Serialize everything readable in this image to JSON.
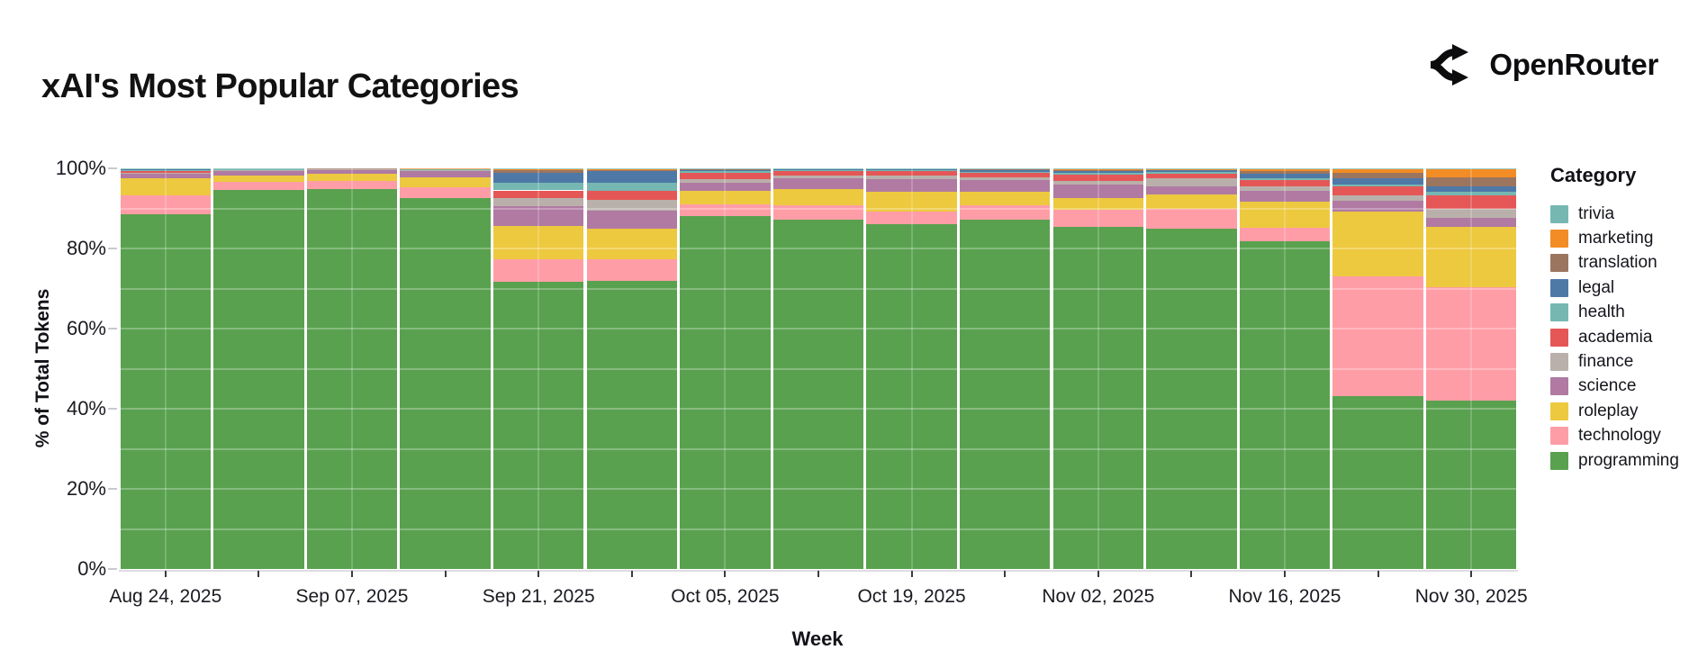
{
  "header": {
    "title": "xAI's Most Popular Categories",
    "brand": "OpenRouter"
  },
  "chart_data": {
    "type": "bar",
    "variant": "stacked-normalized-100pct",
    "title": "xAI's Most Popular Categories",
    "xlabel": "Week",
    "ylabel": "% of Total Tokens",
    "ylim": [
      0,
      100
    ],
    "grid": "white-overlay-every-10pct",
    "num_bars": 15,
    "yticks": [
      {
        "value": 0,
        "label": "0%"
      },
      {
        "value": 20,
        "label": "20%"
      },
      {
        "value": 40,
        "label": "40%"
      },
      {
        "value": 60,
        "label": "60%"
      },
      {
        "value": 80,
        "label": "80%"
      },
      {
        "value": 100,
        "label": "100%"
      }
    ],
    "x_ticks": [
      {
        "bar_index": 0,
        "label": "Aug 24, 2025"
      },
      {
        "bar_index": 2,
        "label": "Sep 07, 2025"
      },
      {
        "bar_index": 4,
        "label": "Sep 21, 2025"
      },
      {
        "bar_index": 6,
        "label": "Oct 05, 2025"
      },
      {
        "bar_index": 8,
        "label": "Oct 19, 2025"
      },
      {
        "bar_index": 10,
        "label": "Nov 02, 2025"
      },
      {
        "bar_index": 12,
        "label": "Nov 16, 2025"
      },
      {
        "bar_index": 14,
        "label": "Nov 30, 2025"
      }
    ],
    "legend": {
      "title": "Category",
      "position": "right",
      "items_top_to_bottom": [
        "trivia",
        "marketing",
        "translation",
        "legal",
        "health",
        "academia",
        "finance",
        "science",
        "roleplay",
        "technology",
        "programming"
      ]
    },
    "series_bottom_to_top": [
      {
        "name": "programming",
        "color": "#59a14f",
        "values": [
          88.6,
          94.6,
          94.9,
          92.6,
          71.6,
          71.9,
          88.2,
          87.1,
          86.0,
          87.1,
          85.3,
          84.9,
          81.9,
          43.2,
          42.0
        ]
      },
      {
        "name": "technology",
        "color": "#ff9da7",
        "values": [
          4.7,
          2.0,
          2.0,
          2.7,
          5.6,
          5.3,
          2.9,
          3.8,
          3.3,
          3.8,
          4.4,
          4.9,
          3.3,
          29.9,
          28.4
        ]
      },
      {
        "name": "roleplay",
        "color": "#edc93f",
        "values": [
          4.2,
          1.5,
          1.8,
          2.5,
          8.4,
          7.8,
          3.3,
          4.0,
          4.9,
          3.3,
          2.9,
          3.6,
          6.4,
          16.2,
          14.9
        ]
      },
      {
        "name": "science",
        "color": "#b07aa2",
        "values": [
          1.1,
          1.2,
          1.0,
          1.7,
          4.9,
          4.4,
          2.0,
          2.7,
          3.0,
          2.8,
          3.3,
          2.2,
          2.7,
          2.7,
          2.4
        ]
      },
      {
        "name": "finance",
        "color": "#bab0ab",
        "values": [
          0.3,
          0.15,
          0.05,
          0.1,
          2.2,
          2.7,
          0.8,
          0.7,
          1.1,
          0.7,
          0.9,
          2.0,
          1.1,
          1.3,
          2.2
        ]
      },
      {
        "name": "academia",
        "color": "#e45756",
        "values": [
          0.6,
          0.3,
          0.15,
          0.2,
          1.8,
          2.2,
          1.6,
          1.1,
          1.1,
          1.1,
          1.6,
          1.1,
          1.6,
          2.2,
          3.3
        ]
      },
      {
        "name": "health",
        "color": "#76b7b2",
        "values": [
          0.1,
          0.08,
          0.03,
          0.05,
          2.0,
          2.2,
          0.5,
          0.2,
          0.2,
          0.35,
          0.4,
          0.35,
          0.5,
          0.5,
          0.9
        ]
      },
      {
        "name": "legal",
        "color": "#4e79a7",
        "values": [
          0.2,
          0.1,
          0.04,
          0.08,
          2.4,
          2.9,
          0.4,
          0.25,
          0.2,
          0.5,
          0.6,
          0.5,
          1.1,
          1.6,
          1.4
        ]
      },
      {
        "name": "translation",
        "color": "#9c755f",
        "values": [
          0.1,
          0.04,
          0.02,
          0.04,
          0.6,
          0.3,
          0.15,
          0.05,
          0.1,
          0.2,
          0.3,
          0.2,
          0.8,
          1.2,
          2.2
        ]
      },
      {
        "name": "marketing",
        "color": "#f28c25",
        "values": [
          0.05,
          0.01,
          0.005,
          0.02,
          0.3,
          0.1,
          0.05,
          0.03,
          0.04,
          0.05,
          0.1,
          0.05,
          0.4,
          1.0,
          2.1
        ]
      },
      {
        "name": "trivia",
        "color": "#76b7b2",
        "values": [
          0.05,
          0.02,
          0.015,
          0.01,
          0.2,
          0.2,
          0.1,
          0.07,
          0.06,
          0.1,
          0.2,
          0.2,
          0.2,
          0.2,
          0.2
        ]
      }
    ]
  }
}
